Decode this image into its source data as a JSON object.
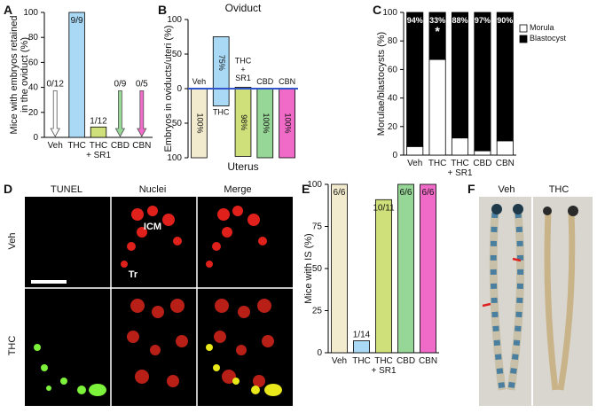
{
  "chart_data": [
    {
      "panel": "A",
      "type": "bar",
      "y_label": "Mice with embryos retained\nin the oviduct (%)",
      "categories": [
        "Veh",
        "THC",
        "THC\n+ SR1",
        "CBD",
        "CBN"
      ],
      "values": [
        0,
        100,
        8.3,
        0,
        0
      ],
      "value_labels": [
        "0/12",
        "9/9",
        "1/12",
        "0/9",
        "0/5"
      ],
      "colors": [
        "#ffffff",
        "#a9d9f5",
        "#cfe07a",
        "#96d696",
        "#f06ac8"
      ],
      "ylim": [
        0,
        100
      ],
      "yticks": [
        0,
        20,
        40,
        60,
        80,
        100
      ]
    },
    {
      "panel": "B",
      "type": "diverging",
      "title": "Oviduct",
      "y_label": "Embryos in oviducts/uteri (%)",
      "categories": [
        "Veh",
        "THC",
        "THC\n+\nSR1",
        "CBD",
        "CBN"
      ],
      "series": [
        {
          "name": "Oviduct",
          "values": [
            0,
            75,
            2,
            0,
            0
          ],
          "value_labels": [
            null,
            "75%",
            null,
            null,
            null
          ]
        },
        {
          "name": "Uterus",
          "direction": "down",
          "values": [
            100,
            25,
            98,
            100,
            100
          ],
          "value_labels": [
            "100%",
            null,
            "98%",
            "100%",
            "100%"
          ]
        }
      ],
      "colors": [
        "#f2ebce",
        "#a9d9f5",
        "#cfe07a",
        "#96d696",
        "#f06ac8"
      ],
      "zero_line_color": "#3355cc",
      "ylim": [
        -100,
        100
      ],
      "yticks": [
        {
          "value": -100,
          "label": "100"
        },
        {
          "value": -50,
          "label": "50"
        },
        0,
        50,
        100
      ]
    },
    {
      "panel": "C",
      "type": "stacked_bar",
      "y_label": "Morulae/blastocysts (%)",
      "categories": [
        "Veh",
        "THC",
        "THC\n+ SR1",
        "CBD",
        "CBN"
      ],
      "series": [
        {
          "name": "Morula",
          "color": "#ffffff",
          "values": [
            6,
            67,
            12,
            3,
            10
          ]
        },
        {
          "name": "Blastocyst",
          "color": "#000000",
          "values": [
            94,
            33,
            88,
            97,
            90
          ],
          "value_labels": [
            "94%",
            "33%",
            "88%",
            "97%",
            "90%"
          ]
        }
      ],
      "annotation": "*",
      "legend": "right",
      "ylim": [
        0,
        100
      ],
      "yticks": [
        0,
        20,
        40,
        60,
        80,
        100
      ]
    },
    {
      "panel": "E",
      "type": "bar",
      "y_label": "Mice with IS (%)",
      "categories": [
        "Veh",
        "THC",
        "THC\n+ SR1",
        "CBD",
        "CBN"
      ],
      "values": [
        100,
        7.1,
        90.9,
        100,
        100
      ],
      "value_labels": [
        "6/6",
        "1/14",
        "10/11",
        "6/6",
        "6/6"
      ],
      "colors": [
        "#f2ebce",
        "#a9d9f5",
        "#cfe07a",
        "#96d696",
        "#f06ac8"
      ],
      "ylim": [
        0,
        100
      ],
      "yticks": [
        0,
        25,
        50,
        75,
        100
      ]
    }
  ],
  "micrographs": {
    "panel": "D",
    "columns": [
      "TUNEL",
      "Nuclei",
      "Merge"
    ],
    "rows": [
      "Veh",
      "THC"
    ],
    "annotations": [
      "ICM",
      "Tr"
    ]
  },
  "uterus_photo": {
    "panel": "F",
    "labels": [
      "Veh",
      "THC"
    ]
  }
}
